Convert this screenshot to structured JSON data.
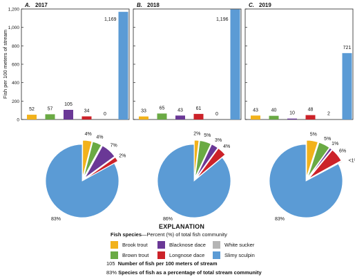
{
  "chart_data": {
    "type": "bar",
    "ylabel": "Fish per 100 meters of stream",
    "ylim": [
      0,
      1200
    ],
    "yticks": [
      "0",
      "200",
      "400",
      "600",
      "800",
      "1,000",
      "1,200"
    ],
    "colors": {
      "Brook trout": "#f2b21b",
      "Brown trout": "#6aaa44",
      "Blacknose dace": "#6a3896",
      "Longnose dace": "#cc2229",
      "White sucker": "#b5b5b5",
      "Slimy sculpin": "#5b9bd5"
    },
    "panels": [
      {
        "letter": "A.",
        "year": "2017",
        "categories": [
          "Brook trout",
          "Brown trout",
          "Blacknose dace",
          "Longnose dace",
          "White sucker",
          "Slimy sculpin"
        ],
        "values": [
          52,
          57,
          105,
          34,
          0,
          1169
        ],
        "value_labels": [
          "52",
          "57",
          "105",
          "34",
          "0",
          "1,169"
        ],
        "pie": [
          {
            "species": "Brook trout",
            "share": 4,
            "label": "4%"
          },
          {
            "species": "Brown trout",
            "share": 4,
            "label": "4%"
          },
          {
            "species": "Blacknose dace",
            "share": 7,
            "label": "7%"
          },
          {
            "species": "Longnose dace",
            "share": 2,
            "label": "2%"
          },
          {
            "species": "Slimy sculpin",
            "share": 83,
            "label": "83%"
          }
        ]
      },
      {
        "letter": "B.",
        "year": "2018",
        "categories": [
          "Brook trout",
          "Brown trout",
          "Blacknose dace",
          "Longnose dace",
          "White sucker",
          "Slimy sculpin"
        ],
        "values": [
          33,
          65,
          43,
          61,
          0,
          1196
        ],
        "value_labels": [
          "33",
          "65",
          "43",
          "61",
          "0",
          "1,196"
        ],
        "pie": [
          {
            "species": "Brook trout",
            "share": 2,
            "label": "2%"
          },
          {
            "species": "Brown trout",
            "share": 5,
            "label": "5%"
          },
          {
            "species": "Blacknose dace",
            "share": 3,
            "label": "3%"
          },
          {
            "species": "Longnose dace",
            "share": 4,
            "label": "4%"
          },
          {
            "species": "Slimy sculpin",
            "share": 86,
            "label": "86%"
          }
        ]
      },
      {
        "letter": "C.",
        "year": "2019",
        "categories": [
          "Brook trout",
          "Brown trout",
          "Blacknose dace",
          "Longnose dace",
          "White sucker",
          "Slimy sculpin"
        ],
        "values": [
          43,
          40,
          10,
          48,
          2,
          721
        ],
        "value_labels": [
          "43",
          "40",
          "10",
          "48",
          "2",
          "721"
        ],
        "pie": [
          {
            "species": "Brook trout",
            "share": 5,
            "label": "5%"
          },
          {
            "species": "Brown trout",
            "share": 5,
            "label": "5%"
          },
          {
            "species": "Blacknose dace",
            "share": 1,
            "label": "1%"
          },
          {
            "species": "Longnose dace",
            "share": 6,
            "label": "6%"
          },
          {
            "species": "White sucker",
            "share": 0.3,
            "label": "<1%"
          },
          {
            "species": "Slimy sculpin",
            "share": 83,
            "label": "83%"
          }
        ]
      }
    ]
  },
  "legend": {
    "heading": "EXPLANATION",
    "species_title": "Fish species",
    "species_subtitle": "—Percent (%) of total fish community",
    "items": [
      "Brook trout",
      "Blacknose dace",
      "White sucker",
      "Brown trout",
      "Longnose dace",
      "Slimy sculpin"
    ],
    "number_example": "105",
    "number_note": "Number of fish per 100 meters of stream",
    "percent_example": "83%",
    "percent_note": "Species of fish as a percentage of total stream community"
  }
}
